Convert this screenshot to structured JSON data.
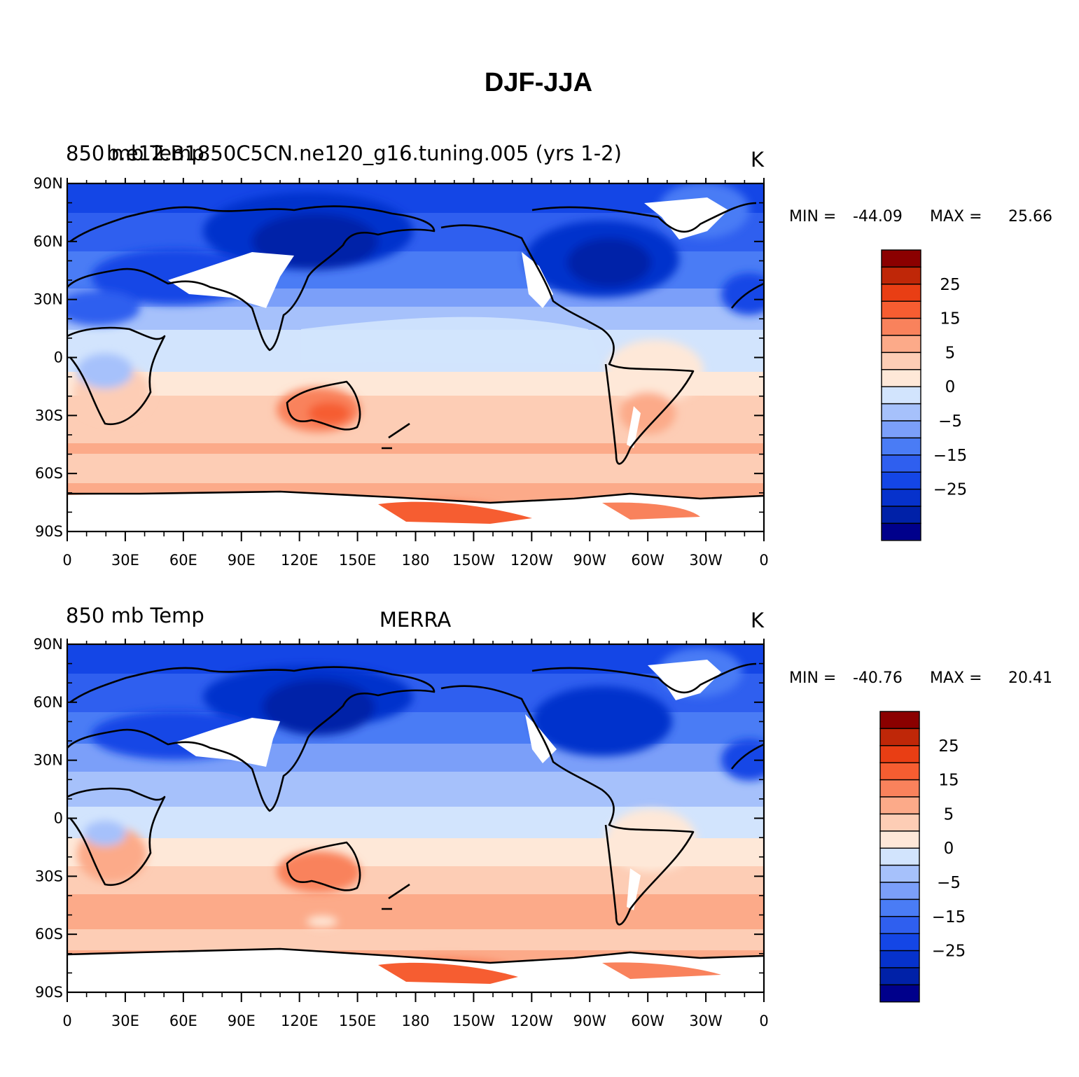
{
  "figure": {
    "title": "DJF-JJA"
  },
  "colors": {
    "levels": [
      "#00008b",
      "#0021a8",
      "#0632cc",
      "#1446e6",
      "#2f5fef",
      "#4a7cf5",
      "#7b9ff9",
      "#a6c1fb",
      "#d2e4fd",
      "#fee8d8",
      "#fdcdb5",
      "#fcaa89",
      "#f9825c",
      "#f65d31",
      "#e93e14",
      "#bf2708",
      "#8b0000"
    ],
    "land_missing": "#ffffff"
  },
  "panels": [
    {
      "id": "model",
      "left_title": "850 mb Temp",
      "center_title": "",
      "case_title": "b.e12.B1850C5CN.ne120_g16.tuning.005 (yrs 1-2)",
      "units": "K",
      "stats": {
        "min_label": "MIN =",
        "min": "-44.09",
        "max_label": "MAX =",
        "max": "25.66"
      }
    },
    {
      "id": "obs",
      "left_title": "850 mb Temp",
      "center_title": "MERRA",
      "case_title": "",
      "units": "K",
      "stats": {
        "min_label": "MIN =",
        "min": "-40.76",
        "max_label": "MAX =",
        "max": "20.41"
      }
    }
  ],
  "axes": {
    "lat_ticks": [
      "90N",
      "60N",
      "30N",
      "0",
      "30S",
      "60S",
      "90S"
    ],
    "lon_ticks": [
      "0",
      "30E",
      "60E",
      "90E",
      "120E",
      "150E",
      "180",
      "150W",
      "120W",
      "90W",
      "60W",
      "30W",
      "0"
    ]
  },
  "colorbar": {
    "labels": [
      "25",
      "15",
      "5",
      "0",
      "−5",
      "−15",
      "−25"
    ]
  }
}
